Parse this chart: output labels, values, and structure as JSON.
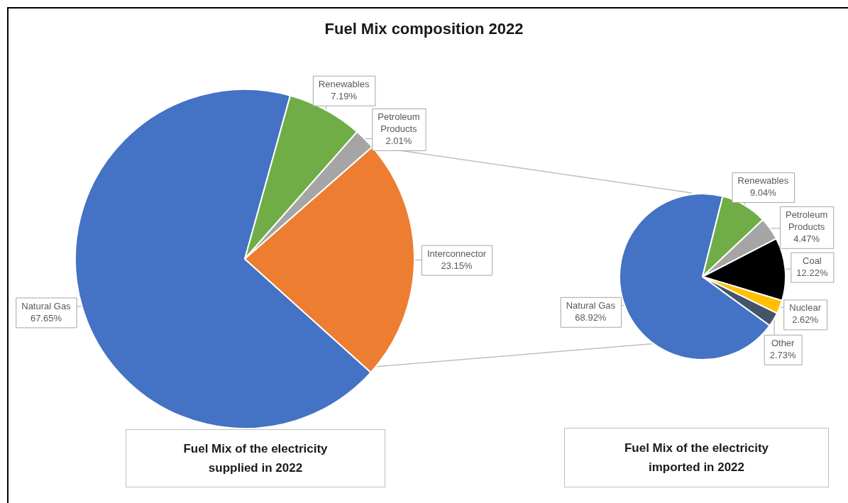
{
  "chart_data": [
    {
      "type": "pie",
      "title": "Fuel Mix composition 2022",
      "categories": [
        "Natural Gas",
        "Renewables",
        "Petroleum Products",
        "Interconnector"
      ],
      "values": [
        67.65,
        7.19,
        2.01,
        23.15
      ],
      "value_labels": [
        "67.65%",
        "7.19%",
        "2.01%",
        "23.15%"
      ],
      "colors": [
        "#4472c4",
        "#70ad47",
        "#a5a5a5",
        "#ed7d31"
      ],
      "legend": false,
      "annotations": [
        "Fuel Mix of the electricity supplied in 2022"
      ]
    },
    {
      "type": "pie",
      "categories": [
        "Natural Gas",
        "Renewables",
        "Petroleum Products",
        "Coal",
        "Nuclear",
        "Other"
      ],
      "values": [
        68.92,
        9.04,
        4.47,
        12.22,
        2.62,
        2.73
      ],
      "value_labels": [
        "68.92%",
        "9.04%",
        "4.47%",
        "12.22%",
        "2.62%",
        "2.73%"
      ],
      "colors": [
        "#4472c4",
        "#70ad47",
        "#a5a5a5",
        "#000000",
        "#ffc000",
        "#44546a"
      ],
      "legend": false,
      "annotations": [
        "Fuel Mix of the electricity imported in 2022"
      ]
    }
  ]
}
